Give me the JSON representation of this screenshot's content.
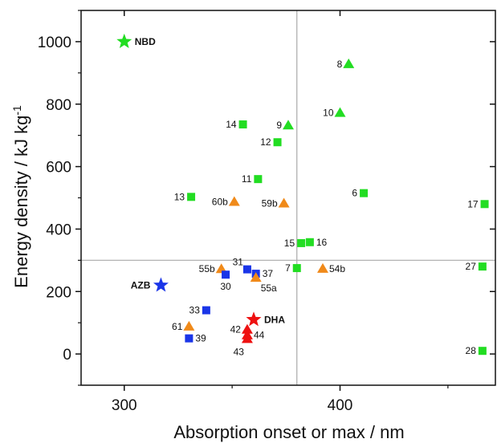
{
  "chart_data": {
    "type": "scatter",
    "title": "",
    "xlabel": "Absorption onset or max / nm",
    "ylabel_base": "Energy density / kJ kg",
    "ylabel_sup": "-1",
    "xlim": [
      280,
      472
    ],
    "ylim": [
      -100,
      1100
    ],
    "xticks": [
      300,
      400
    ],
    "yticks": [
      0,
      200,
      400,
      600,
      800,
      1000
    ],
    "grid": false,
    "reference_lines": {
      "x": 380,
      "y": 300
    },
    "colors": {
      "green": "#22dd22",
      "orange": "#f08a1a",
      "blue": "#1a35e8",
      "red": "#ee1111"
    },
    "points": [
      {
        "label": "NBD",
        "x": 300,
        "y": 1000,
        "marker": "star",
        "color": "green",
        "bold": true,
        "label_side": "right"
      },
      {
        "label": "8",
        "x": 404,
        "y": 928,
        "marker": "triangle",
        "color": "green",
        "label_side": "left"
      },
      {
        "label": "10",
        "x": 400,
        "y": 772,
        "marker": "triangle",
        "color": "green",
        "label_side": "left"
      },
      {
        "label": "14",
        "x": 355,
        "y": 735,
        "marker": "square",
        "color": "green",
        "label_side": "left"
      },
      {
        "label": "9",
        "x": 376,
        "y": 732,
        "marker": "triangle",
        "color": "green",
        "label_side": "left"
      },
      {
        "label": "12",
        "x": 371,
        "y": 678,
        "marker": "square",
        "color": "green",
        "label_side": "left"
      },
      {
        "label": "11",
        "x": 362,
        "y": 560,
        "marker": "square",
        "color": "green",
        "label_side": "left"
      },
      {
        "label": "6",
        "x": 411,
        "y": 515,
        "marker": "square",
        "color": "green",
        "label_side": "left"
      },
      {
        "label": "13",
        "x": 331,
        "y": 503,
        "marker": "square",
        "color": "green",
        "label_side": "left"
      },
      {
        "label": "60b",
        "x": 351,
        "y": 487,
        "marker": "triangle",
        "color": "orange",
        "label_side": "left"
      },
      {
        "label": "59b",
        "x": 374,
        "y": 482,
        "marker": "triangle",
        "color": "orange",
        "label_side": "left"
      },
      {
        "label": "17",
        "x": 467,
        "y": 480,
        "marker": "square",
        "color": "green",
        "label_side": "left"
      },
      {
        "label": "15",
        "x": 382,
        "y": 355,
        "marker": "square",
        "color": "green",
        "label_side": "left"
      },
      {
        "label": "16",
        "x": 386,
        "y": 358,
        "marker": "square",
        "color": "green",
        "label_side": "right"
      },
      {
        "label": "7",
        "x": 380,
        "y": 275,
        "marker": "square",
        "color": "green",
        "label_side": "left"
      },
      {
        "label": "54b",
        "x": 392,
        "y": 273,
        "marker": "triangle",
        "color": "orange",
        "label_side": "right"
      },
      {
        "label": "27",
        "x": 466,
        "y": 280,
        "marker": "square",
        "color": "green",
        "label_side": "left"
      },
      {
        "label": "55b",
        "x": 345,
        "y": 272,
        "marker": "triangle",
        "color": "orange",
        "label_side": "left"
      },
      {
        "label": "30",
        "x": 347,
        "y": 254,
        "marker": "square",
        "color": "blue",
        "label_side": "below"
      },
      {
        "label": "31",
        "x": 357,
        "y": 271,
        "marker": "square",
        "color": "blue",
        "label_side": "above-left"
      },
      {
        "label": "37",
        "x": 361,
        "y": 257,
        "marker": "square",
        "color": "blue",
        "label_side": "right"
      },
      {
        "label": "55a",
        "x": 361,
        "y": 244,
        "marker": "triangle",
        "color": "orange",
        "label_side": "below-right"
      },
      {
        "label": "AZB",
        "x": 317,
        "y": 220,
        "marker": "star",
        "color": "blue",
        "bold": true,
        "label_side": "left"
      },
      {
        "label": "33",
        "x": 338,
        "y": 140,
        "marker": "square",
        "color": "blue",
        "label_side": "left"
      },
      {
        "label": "DHA",
        "x": 360,
        "y": 110,
        "marker": "star",
        "color": "red",
        "bold": true,
        "label_side": "right"
      },
      {
        "label": "61",
        "x": 330,
        "y": 88,
        "marker": "triangle",
        "color": "orange",
        "label_side": "left"
      },
      {
        "label": "42",
        "x": 357,
        "y": 78,
        "marker": "triangle",
        "color": "red",
        "label_side": "left"
      },
      {
        "label": "44",
        "x": 357,
        "y": 60,
        "marker": "triangle",
        "color": "red",
        "label_side": "right"
      },
      {
        "label": "43",
        "x": 357,
        "y": 48,
        "marker": "triangle",
        "color": "red",
        "label_side": "below-left"
      },
      {
        "label": "39",
        "x": 330,
        "y": 50,
        "marker": "square",
        "color": "blue",
        "label_side": "right"
      },
      {
        "label": "28",
        "x": 466,
        "y": 10,
        "marker": "square",
        "color": "green",
        "label_side": "left"
      }
    ]
  }
}
